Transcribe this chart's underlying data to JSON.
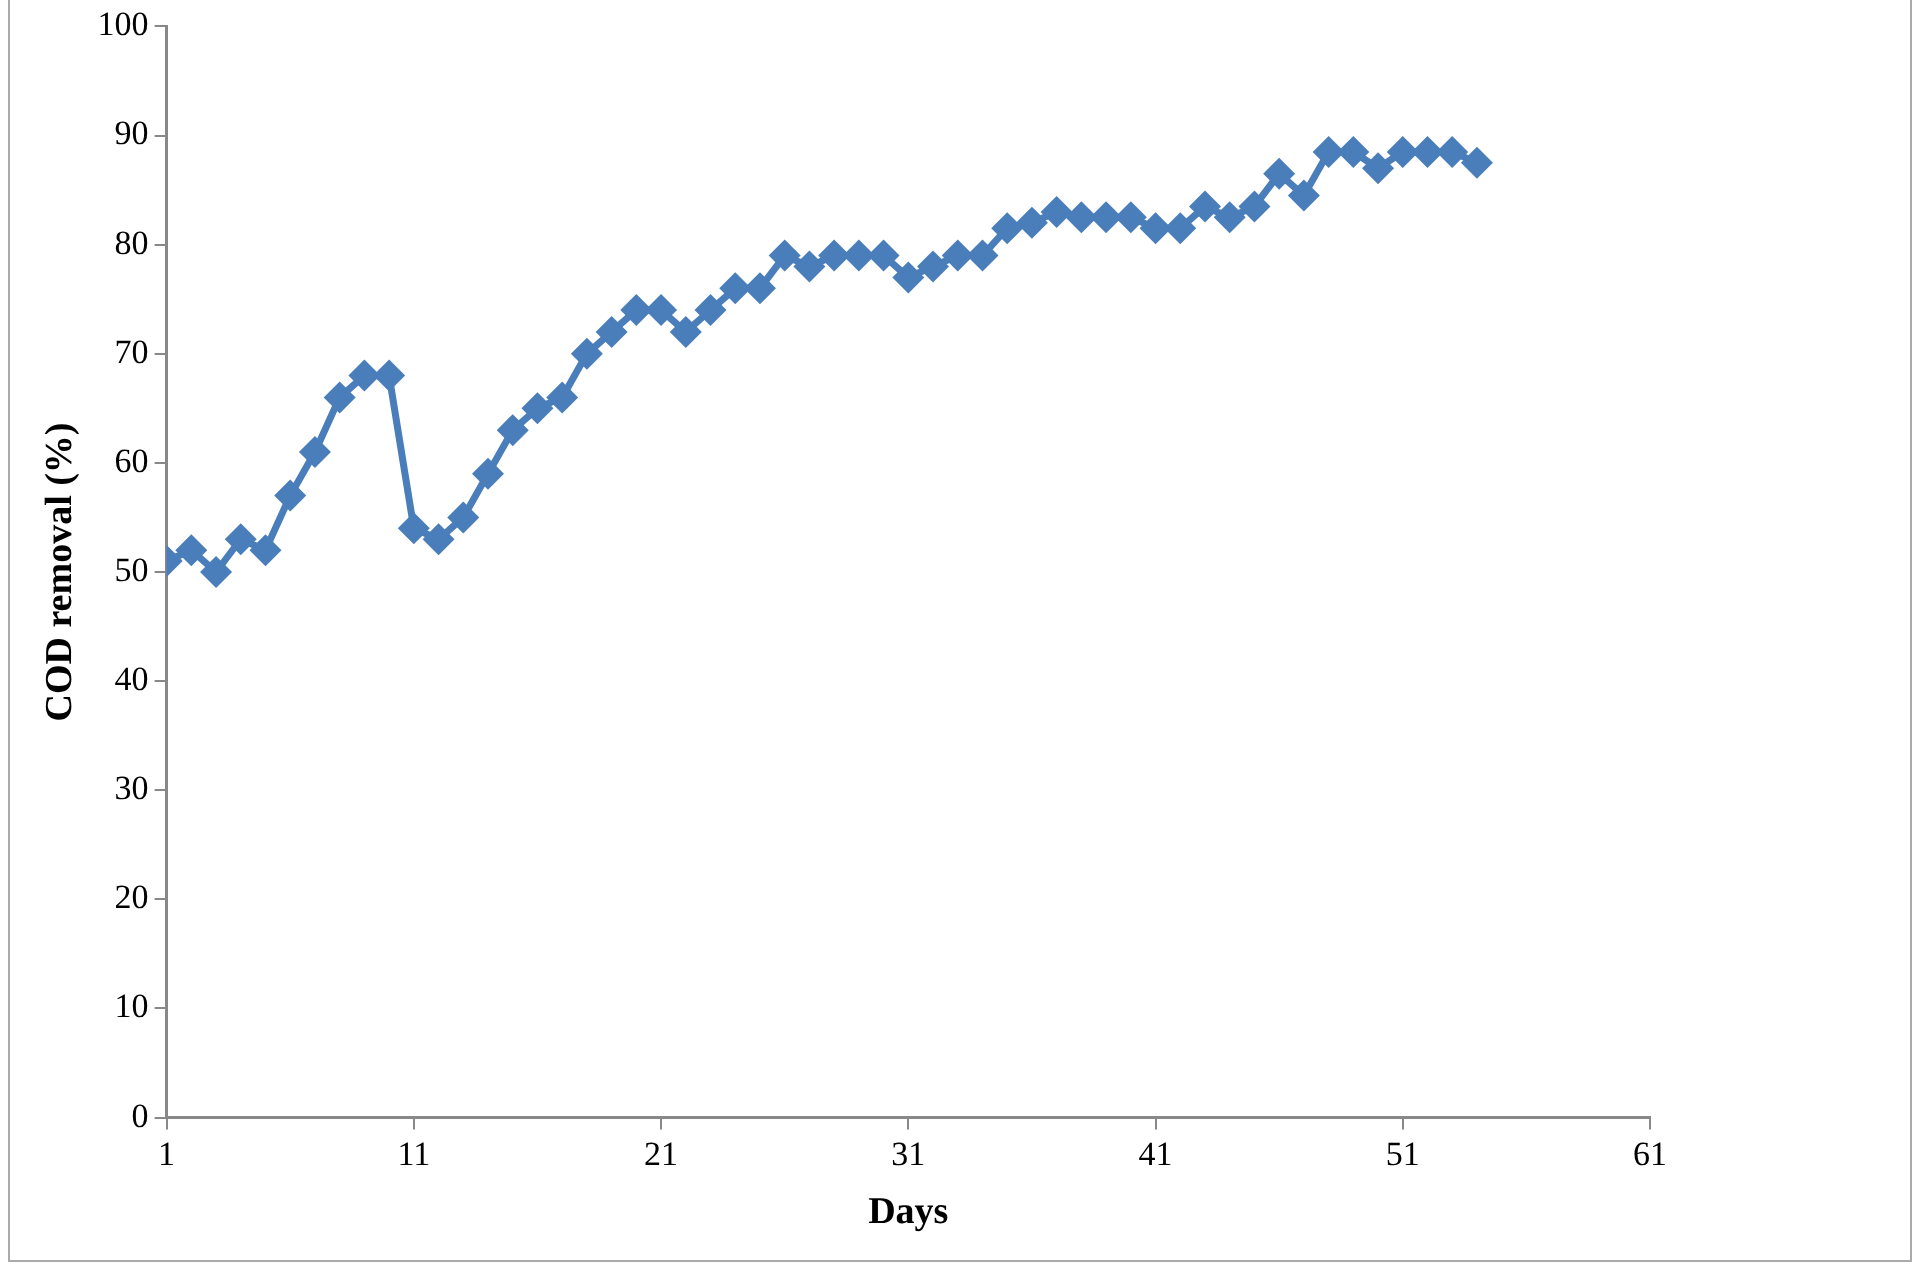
{
  "chart_data": {
    "type": "line",
    "xlabel": "Days",
    "ylabel": "COD removal (%)",
    "x": [
      1,
      2,
      3,
      4,
      5,
      6,
      7,
      8,
      9,
      10,
      11,
      12,
      13,
      14,
      15,
      16,
      17,
      18,
      19,
      20,
      21,
      22,
      23,
      24,
      25,
      26,
      27,
      28,
      29,
      30,
      31,
      32,
      33,
      34,
      35,
      36,
      37,
      38,
      39,
      40,
      41,
      42,
      43,
      44,
      45,
      46,
      47,
      48,
      49,
      50,
      51,
      52,
      53,
      54
    ],
    "series": [
      {
        "color": "#4a7ebb",
        "values": [
          51,
          52,
          50,
          53,
          52,
          57,
          61,
          66,
          68,
          68,
          54,
          53,
          55,
          59,
          63,
          65,
          66,
          70,
          72,
          74,
          74,
          72,
          74,
          76,
          76,
          79,
          78,
          79,
          79,
          79,
          77,
          78,
          79,
          79,
          81.5,
          82,
          83,
          82.5,
          82.5,
          82.5,
          81.5,
          81.5,
          83.5,
          82.5,
          83.5,
          86.5,
          84.5,
          88.5,
          88.5,
          87,
          88.5,
          88.5,
          88.5,
          87.5
        ]
      }
    ],
    "xlim": [
      1,
      61
    ],
    "xticks": [
      1,
      11,
      21,
      31,
      41,
      51,
      61
    ],
    "ylim": [
      0,
      100
    ],
    "yticks": [
      0,
      10,
      20,
      30,
      40,
      50,
      60,
      70,
      80,
      90,
      100
    ],
    "grid": false,
    "legend": false,
    "marker": "diamond",
    "line_style": "solid"
  }
}
